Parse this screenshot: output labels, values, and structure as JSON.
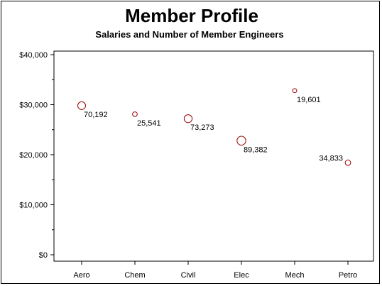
{
  "chart_data": {
    "type": "scatter",
    "title": "Member Profile",
    "subtitle": "Salaries and Number of Member Engineers",
    "xlabel": "",
    "ylabel": "",
    "categories": [
      "Aero",
      "Chem",
      "Civil",
      "Elec",
      "Mech",
      "Petro"
    ],
    "ylim": [
      0,
      40000
    ],
    "yticks": [
      "$0",
      "$10,000",
      "$20,000",
      "$30,000",
      "$40,000"
    ],
    "ytick_values": [
      0,
      10000,
      20000,
      30000,
      40000
    ],
    "series": [
      {
        "values": [
          29800,
          28100,
          27200,
          22800,
          32800,
          18400
        ],
        "sizes": [
          70192,
          25541,
          73273,
          89382,
          19601,
          34833
        ],
        "labels": [
          "70,192",
          "25,541",
          "73,273",
          "89,382",
          "19,601",
          "34,833"
        ]
      }
    ],
    "grid": false,
    "legend": "none",
    "marker_color": "#990000"
  }
}
